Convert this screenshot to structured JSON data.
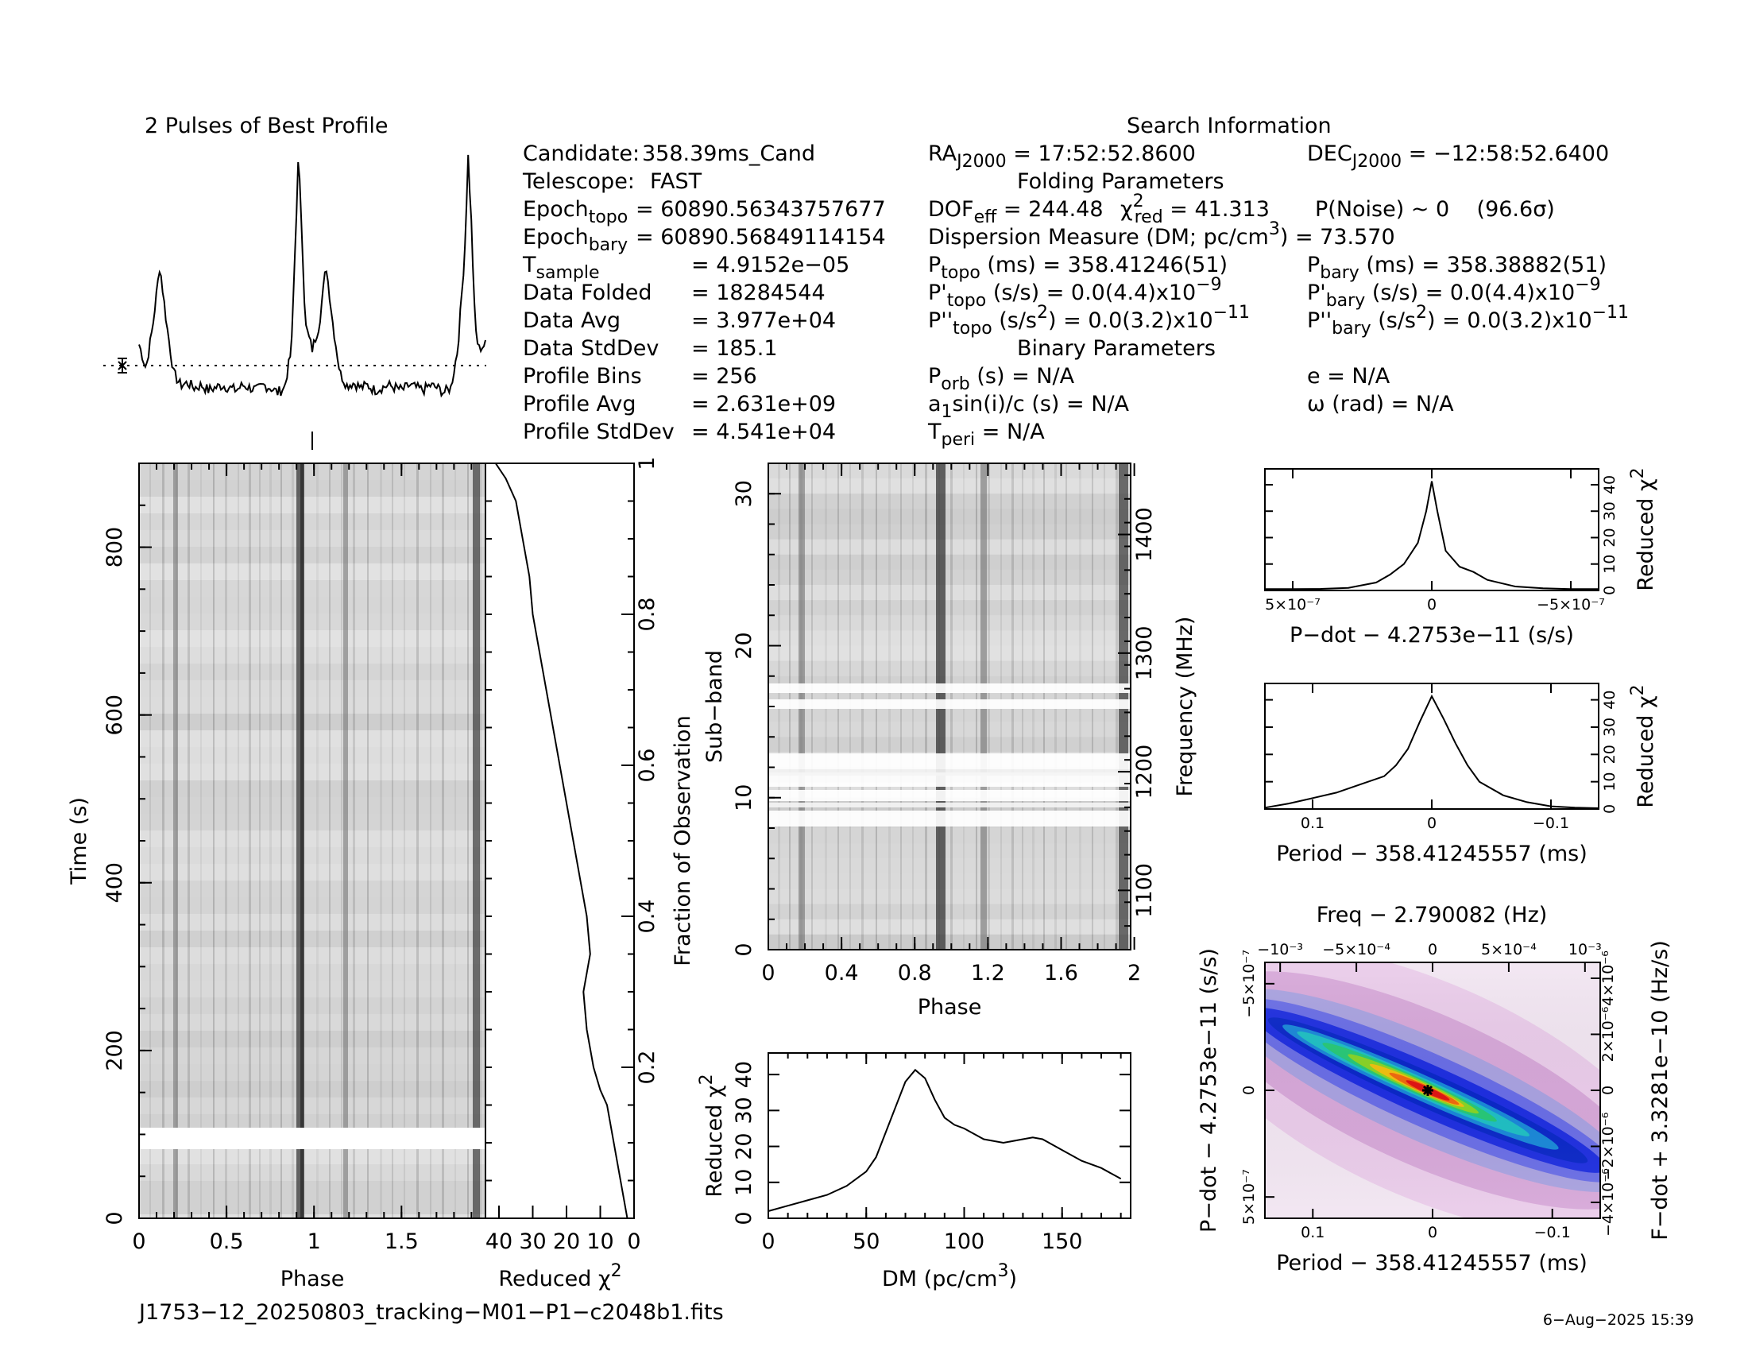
{
  "profile_title": "2 Pulses of Best Profile",
  "search_info_title": "Search Information",
  "info_left": [
    {
      "label": "Candidate:",
      "value": "358.39ms_Cand"
    },
    {
      "label": "Telescope:",
      "value": "FAST"
    },
    {
      "label": "Epoch",
      "sub": "topo",
      "value": "= 60890.56343757677"
    },
    {
      "label": "Epoch",
      "sub": "bary",
      "value": "= 60890.56849114154"
    },
    {
      "label": "T",
      "sub": "sample",
      "value": "=   4.9152e−05"
    },
    {
      "label": "Data Folded",
      "value": "=   18284544"
    },
    {
      "label": "Data Avg",
      "value": "=   3.977e+04"
    },
    {
      "label": "Data StdDev",
      "value": "=   185.1"
    },
    {
      "label": "Profile Bins",
      "value": "=   256"
    },
    {
      "label": "Profile Avg",
      "value": "=   2.631e+09"
    },
    {
      "label": "Profile StdDev",
      "value": "=   4.541e+04"
    }
  ],
  "ra": {
    "label": "RA",
    "sub": "J2000",
    "value": " = 17:52:52.8600"
  },
  "dec": {
    "label": "DEC",
    "sub": "J2000",
    "value": " = −12:58:52.6400"
  },
  "folding_title": "Folding Parameters",
  "dof": {
    "label": "DOF",
    "sub": "eff",
    "value": " = 244.48"
  },
  "chi2red": {
    "label": "χ",
    "sup": "2",
    "sub": "red",
    "value": " = 41.313"
  },
  "pnoise": "P(Noise) ~ 0    (96.6σ)",
  "dm_line": {
    "text": "Dispersion Measure (DM; pc/cm",
    "sup": "3",
    "value": ") = 73.570"
  },
  "p_topo": {
    "label": "P",
    "sub": "topo",
    "value": " (ms)  =  358.41246(51)"
  },
  "p_bary": {
    "label": "P",
    "sub": "bary",
    "value": " (ms)  =  358.38882(51)"
  },
  "pd_topo": {
    "label": "P'",
    "sub": "topo",
    "value": " (s/s) = 0.0(4.4)x10",
    "exp": "−9"
  },
  "pd_bary": {
    "label": "P'",
    "sub": "bary",
    "value": " (s/s) = 0.0(4.4)x10",
    "exp": "−9"
  },
  "pdd_topo": {
    "label": "P''",
    "sub": "topo",
    "value": " (s/s",
    "sup": "2",
    "value2": ") = 0.0(3.2)x10",
    "exp": "−11"
  },
  "pdd_bary": {
    "label": "P''",
    "sub": "bary",
    "value": " (s/s",
    "sup": "2",
    "value2": ") = 0.0(3.2)x10",
    "exp": "−11"
  },
  "binary_title": "Binary Parameters",
  "p_orb": {
    "label": "P",
    "sub": "orb",
    "value": " (s) = N/A"
  },
  "asini": {
    "label": "a",
    "sub": "1",
    "value": "sin(i)/c (s) = N/A"
  },
  "t_peri": {
    "label": "T",
    "sub": "peri",
    "value": " = N/A"
  },
  "ecc": "e = N/A",
  "omega": "ω (rad) = N/A",
  "filename": "J1753−12_20250803_tracking−M01−P1−c2048b1.fits",
  "timestamp": "6−Aug−2025 15:39",
  "time_phase": {
    "ylabel": "Time (s)",
    "xlabel": "Phase",
    "xticks": [
      "0",
      "0.5",
      "1",
      "1.5"
    ],
    "yticks": [
      "0",
      "200",
      "400",
      "600",
      "800"
    ]
  },
  "time_chi": {
    "xlabel": "Reduced χ",
    "xlabel_sup": "2",
    "ylabel": "Fraction of Observation",
    "xticks": [
      "40",
      "30",
      "20",
      "10",
      "0"
    ],
    "yticks": [
      "0.2",
      "0.4",
      "0.6",
      "0.8",
      "1"
    ]
  },
  "subband": {
    "ylabel": "Sub−band",
    "xlabel": "Phase",
    "rlabel": "Frequency (MHz)",
    "xticks": [
      "0",
      "0.4",
      "0.8",
      "1.2",
      "1.6",
      "2"
    ],
    "yticks": [
      "0",
      "10",
      "20",
      "30"
    ],
    "rticks": [
      "1100",
      "1200",
      "1300",
      "1400"
    ]
  },
  "dm_panel": {
    "ylabel": "Reduced χ",
    "ylabel_sup": "2",
    "xlabel": "DM (pc/cm",
    "xlabel_sup": "3",
    "xlabel_end": ")",
    "xticks": [
      "0",
      "50",
      "100",
      "150"
    ],
    "yticks": [
      "0",
      "10",
      "20",
      "30",
      "40"
    ]
  },
  "pdot_panel": {
    "xlabel": "P−dot − 4.2753e−11 (s/s)",
    "ylabel": "Reduced χ",
    "ylabel_sup": "2",
    "xticks": [
      "5×10⁻⁷",
      "0",
      "−5×10⁻⁷"
    ],
    "yticks": [
      "0",
      "10",
      "20",
      "30",
      "40"
    ]
  },
  "period_panel": {
    "xlabel": "Period − 358.41245557 (ms)",
    "ylabel": "Reduced χ",
    "ylabel_sup": "2",
    "xticks": [
      "0.1",
      "0",
      "−0.1"
    ],
    "yticks": [
      "0",
      "10",
      "20",
      "30",
      "40"
    ]
  },
  "ppdot_panel": {
    "toplabel": "Freq − 2.790082 (Hz)",
    "topticks": [
      "−10⁻³",
      "−5×10⁻⁴",
      "0",
      "5×10⁻⁴",
      "10⁻³"
    ],
    "xlabel": "Period − 358.41245557 (ms)",
    "xticks": [
      "0.1",
      "0",
      "−0.1"
    ],
    "ylabel": "P−dot − 4.2753e−11 (s/s)",
    "yticks": [
      "−5×10⁻⁷",
      "0",
      "5×10⁻⁷"
    ],
    "rlabel": "F−dot + 3.3281e−10 (Hz/s)",
    "rticks": [
      "4×10⁻⁶",
      "2×10⁻⁶",
      "0",
      "−2×10⁻⁶",
      "−4×10⁻⁶"
    ]
  },
  "chart_data": [
    {
      "type": "line",
      "title": "2 Pulses of Best Profile",
      "x": [
        0.0,
        0.04,
        0.08,
        0.12,
        0.16,
        0.2,
        0.24,
        0.28,
        0.32,
        0.36,
        0.4,
        0.44,
        0.48,
        0.52,
        0.56,
        0.6,
        0.64,
        0.68,
        0.72,
        0.76,
        0.8,
        0.84,
        0.88,
        0.9,
        0.92,
        0.94,
        0.96,
        1.0,
        1.04,
        1.08,
        1.12,
        1.16,
        1.2,
        1.24,
        1.28,
        1.32,
        1.36,
        1.4,
        1.44,
        1.48,
        1.52,
        1.56,
        1.6,
        1.64,
        1.68,
        1.72,
        1.76,
        1.8,
        1.84,
        1.88,
        1.9,
        1.92,
        1.94,
        1.96,
        2.0
      ],
      "values": [
        0.22,
        0.12,
        0.3,
        0.55,
        0.3,
        0.1,
        0.05,
        0.06,
        0.04,
        0.05,
        0.03,
        0.04,
        0.05,
        0.04,
        0.03,
        0.05,
        0.04,
        0.03,
        0.05,
        0.04,
        0.02,
        0.04,
        0.2,
        0.6,
        1.0,
        0.7,
        0.3,
        0.2,
        0.3,
        0.55,
        0.3,
        0.1,
        0.05,
        0.06,
        0.04,
        0.05,
        0.03,
        0.04,
        0.05,
        0.04,
        0.03,
        0.05,
        0.04,
        0.03,
        0.05,
        0.04,
        0.02,
        0.04,
        0.2,
        0.6,
        1.0,
        0.7,
        0.3,
        0.2,
        0.22
      ]
    },
    {
      "type": "line",
      "xlabel": "Reduced χ²",
      "ylabel": "Fraction of Observation",
      "x": [
        2,
        4,
        6,
        8,
        10,
        12,
        14,
        15,
        13,
        14,
        16,
        18,
        20,
        22,
        24,
        26,
        28,
        30,
        31,
        33,
        35,
        38,
        41
      ],
      "y": [
        0.0,
        0.05,
        0.1,
        0.15,
        0.17,
        0.2,
        0.25,
        0.3,
        0.35,
        0.4,
        0.45,
        0.5,
        0.55,
        0.6,
        0.65,
        0.7,
        0.75,
        0.8,
        0.85,
        0.9,
        0.95,
        0.98,
        1.0
      ],
      "xlim": [
        44,
        0
      ],
      "ylim": [
        0,
        1
      ]
    },
    {
      "type": "line",
      "xlabel": "DM (pc/cm³)",
      "ylabel": "Reduced χ²",
      "x": [
        0,
        10,
        20,
        30,
        40,
        50,
        55,
        60,
        65,
        70,
        75,
        80,
        85,
        90,
        95,
        100,
        110,
        120,
        130,
        135,
        140,
        150,
        160,
        170,
        180
      ],
      "values": [
        2,
        3.5,
        5,
        6.5,
        9,
        13,
        17,
        24,
        31,
        38,
        41.3,
        39,
        33,
        28,
        26,
        25,
        22,
        21,
        22,
        22.5,
        22,
        19,
        16,
        14,
        11
      ],
      "xlim": [
        0,
        185
      ],
      "ylim": [
        0,
        46
      ]
    },
    {
      "type": "line",
      "xlabel": "P−dot − 4.2753e−11 (s/s)",
      "ylabel": "Reduced χ²",
      "x": [
        6e-07,
        5e-07,
        4e-07,
        3e-07,
        2e-07,
        1.5e-07,
        1e-07,
        5e-08,
        2e-08,
        0,
        -2e-08,
        -5e-08,
        -1e-07,
        -1.5e-07,
        -2e-07,
        -3e-07,
        -4e-07,
        -5e-07,
        -6e-07
      ],
      "values": [
        0.5,
        0.5,
        0.6,
        1,
        3,
        6,
        10,
        18,
        30,
        41.3,
        30,
        15,
        9,
        7,
        4,
        1.5,
        0.8,
        0.5,
        0.5
      ],
      "xlim": [
        6e-07,
        -6e-07
      ],
      "ylim": [
        0,
        46
      ]
    },
    {
      "type": "line",
      "xlabel": "Period − 358.41245557 (ms)",
      "ylabel": "Reduced χ²",
      "x": [
        0.14,
        0.12,
        0.1,
        0.08,
        0.06,
        0.04,
        0.03,
        0.02,
        0.01,
        0.0,
        -0.01,
        -0.02,
        -0.03,
        -0.04,
        -0.06,
        -0.08,
        -0.1,
        -0.12,
        -0.14
      ],
      "values": [
        0.5,
        2,
        4,
        6,
        9,
        12,
        16,
        22,
        32,
        41.3,
        33,
        24,
        16,
        10,
        5,
        2.5,
        1,
        0.5,
        0.3
      ],
      "xlim": [
        0.14,
        -0.14
      ],
      "ylim": [
        0,
        46
      ]
    },
    {
      "type": "heatmap",
      "xlabel": "Period − 358.41245557 (ms)",
      "ylabel": "P−dot − 4.2753e−11 (s/s)",
      "xlim": [
        0.14,
        -0.14
      ],
      "ylim": [
        6e-07,
        -6e-07
      ],
      "peak": {
        "x": 0.0,
        "y": 0.0,
        "value": 41.313
      }
    }
  ]
}
